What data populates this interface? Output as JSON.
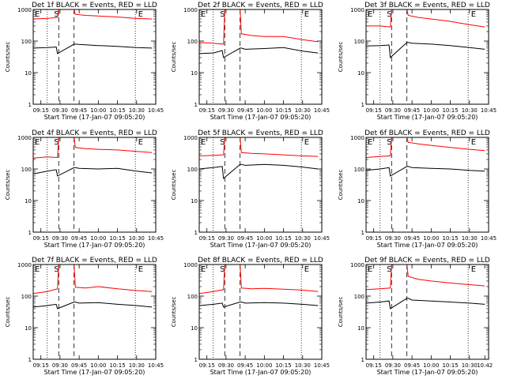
{
  "chart_data": [
    {
      "type": "line",
      "title": "Det 1f BLACK = Events, RED = LLD",
      "xlabel": "Start Time (17-Jan-07 09:05:20)",
      "ylabel": "Counts/sec",
      "yscale": "log",
      "ylim": [
        1,
        1000
      ],
      "xlim": [
        "09:09",
        "10:45"
      ],
      "x_ticks": [
        "09:15",
        "09:30",
        "09:45",
        "10:00",
        "10:15",
        "10:30",
        "10:45"
      ],
      "y_ticks": [
        "1",
        "10",
        "100",
        "1000"
      ],
      "markers": [
        "E",
        "S",
        "E"
      ],
      "series": [
        {
          "color": "#ff0000",
          "x": [
            "09:09",
            "09:20",
            "09:28",
            "09:29",
            "09:41",
            "09:42",
            "09:50",
            "10:00",
            "10:15",
            "10:30",
            "10:42"
          ],
          "values": [
            500,
            520,
            560,
            1000,
            1000,
            700,
            650,
            620,
            580,
            520,
            500
          ]
        },
        {
          "color": "#000000",
          "x": [
            "09:09",
            "09:20",
            "09:27",
            "09:28",
            "09:41",
            "09:42",
            "09:45",
            "10:00",
            "10:15",
            "10:30",
            "10:42"
          ],
          "values": [
            60,
            62,
            65,
            40,
            80,
            80,
            78,
            72,
            68,
            62,
            60
          ]
        }
      ]
    },
    {
      "type": "line",
      "title": "Det 2f BLACK = Events, RED = LLD",
      "xlabel": "Start Time (17-Jan-07 09:05:20)",
      "ylabel": "Counts/sec",
      "yscale": "log",
      "ylim": [
        1,
        1000
      ],
      "xlim": [
        "09:09",
        "10:45"
      ],
      "x_ticks": [
        "09:15",
        "09:30",
        "09:45",
        "10:00",
        "10:15",
        "10:30",
        "10:45"
      ],
      "y_ticks": [
        "1",
        "10",
        "100",
        "1000"
      ],
      "markers": [
        "E",
        "S",
        "E"
      ],
      "series": [
        {
          "color": "#ff0000",
          "x": [
            "09:09",
            "09:20",
            "09:28",
            "09:29",
            "09:41",
            "09:42",
            "09:50",
            "10:00",
            "10:15",
            "10:30",
            "10:42"
          ],
          "values": [
            90,
            85,
            80,
            1000,
            1000,
            170,
            150,
            140,
            140,
            110,
            95
          ]
        },
        {
          "color": "#000000",
          "x": [
            "09:09",
            "09:20",
            "09:27",
            "09:28",
            "09:41",
            "09:42",
            "09:45",
            "10:00",
            "10:15",
            "10:30",
            "10:42"
          ],
          "values": [
            40,
            42,
            50,
            30,
            60,
            60,
            55,
            58,
            62,
            48,
            42
          ]
        }
      ]
    },
    {
      "type": "line",
      "title": "Det 3f BLACK = Events, RED = LLD",
      "xlabel": "Start Time (17-Jan-07 09:05:20)",
      "ylabel": "Counts/sec",
      "yscale": "log",
      "ylim": [
        1,
        1000
      ],
      "xlim": [
        "09:09",
        "10:45"
      ],
      "x_ticks": [
        "09:15",
        "09:30",
        "09:45",
        "10:00",
        "10:15",
        "10:30",
        "10:45"
      ],
      "y_ticks": [
        "1",
        "10",
        "100",
        "1000"
      ],
      "markers": [
        "E",
        "S",
        "E"
      ],
      "series": [
        {
          "color": "#ff0000",
          "x": [
            "09:09",
            "09:20",
            "09:28",
            "09:29",
            "09:41",
            "09:42",
            "09:50",
            "10:00",
            "10:15",
            "10:30",
            "10:42"
          ],
          "values": [
            300,
            300,
            280,
            1000,
            1000,
            650,
            560,
            500,
            420,
            330,
            280
          ]
        },
        {
          "color": "#000000",
          "x": [
            "09:09",
            "09:20",
            "09:27",
            "09:28",
            "09:41",
            "09:42",
            "09:45",
            "10:00",
            "10:15",
            "10:30",
            "10:42"
          ],
          "values": [
            70,
            72,
            75,
            30,
            90,
            90,
            85,
            80,
            72,
            62,
            55
          ]
        }
      ]
    },
    {
      "type": "line",
      "title": "Det 4f BLACK = Events, RED = LLD",
      "xlabel": "Start Time (17-Jan-07 09:05:20)",
      "ylabel": "Counts/sec",
      "yscale": "log",
      "ylim": [
        1,
        1000
      ],
      "xlim": [
        "09:09",
        "10:45"
      ],
      "x_ticks": [
        "09:15",
        "09:30",
        "09:45",
        "10:00",
        "10:15",
        "10:30",
        "10:45"
      ],
      "y_ticks": [
        "1",
        "10",
        "100",
        "1000"
      ],
      "markers": [
        "E",
        "S",
        "E"
      ],
      "series": [
        {
          "color": "#ff0000",
          "x": [
            "09:09",
            "09:20",
            "09:28",
            "09:29",
            "09:41",
            "09:42",
            "09:50",
            "10:00",
            "10:15",
            "10:30",
            "10:42"
          ],
          "values": [
            220,
            240,
            230,
            1000,
            1000,
            480,
            440,
            420,
            400,
            360,
            330
          ]
        },
        {
          "color": "#000000",
          "x": [
            "09:09",
            "09:20",
            "09:27",
            "09:28",
            "09:41",
            "09:42",
            "09:45",
            "10:00",
            "10:15",
            "10:30",
            "10:42"
          ],
          "values": [
            70,
            85,
            95,
            60,
            110,
            110,
            105,
            100,
            105,
            85,
            75
          ]
        }
      ]
    },
    {
      "type": "line",
      "title": "Det 5f BLACK = Events, RED = LLD",
      "xlabel": "Start Time (17-Jan-07 09:05:20)",
      "ylabel": "Counts/sec",
      "yscale": "log",
      "ylim": [
        1,
        1000
      ],
      "xlim": [
        "09:09",
        "10:45"
      ],
      "x_ticks": [
        "09:15",
        "09:30",
        "09:45",
        "10:00",
        "10:15",
        "10:30",
        "10:45"
      ],
      "y_ticks": [
        "1",
        "10",
        "100",
        "1000"
      ],
      "markers": [
        "E",
        "S",
        "E"
      ],
      "series": [
        {
          "color": "#ff0000",
          "x": [
            "09:09",
            "09:20",
            "09:28",
            "09:29",
            "09:41",
            "09:42",
            "09:50",
            "10:00",
            "10:15",
            "10:30",
            "10:42"
          ],
          "values": [
            260,
            270,
            280,
            1000,
            1000,
            330,
            310,
            300,
            280,
            260,
            250
          ]
        },
        {
          "color": "#000000",
          "x": [
            "09:09",
            "09:20",
            "09:27",
            "09:28",
            "09:41",
            "09:42",
            "09:45",
            "10:00",
            "10:15",
            "10:30",
            "10:42"
          ],
          "values": [
            100,
            110,
            120,
            50,
            140,
            140,
            130,
            140,
            130,
            115,
            100
          ]
        }
      ]
    },
    {
      "type": "line",
      "title": "Det 6f BLACK = Events, RED = LLD",
      "xlabel": "Start Time (17-Jan-07 09:05:20)",
      "ylabel": "Counts/sec",
      "yscale": "log",
      "ylim": [
        1,
        1000
      ],
      "xlim": [
        "09:09",
        "10:45"
      ],
      "x_ticks": [
        "09:15",
        "09:30",
        "09:45",
        "10:00",
        "10:15",
        "10:30",
        "10:45"
      ],
      "y_ticks": [
        "1",
        "10",
        "100",
        "1000"
      ],
      "markers": [
        "E",
        "S",
        "E"
      ],
      "series": [
        {
          "color": "#ff0000",
          "x": [
            "09:09",
            "09:20",
            "09:28",
            "09:29",
            "09:41",
            "09:42",
            "09:50",
            "10:00",
            "10:15",
            "10:30",
            "10:42"
          ],
          "values": [
            230,
            250,
            260,
            1000,
            1000,
            700,
            620,
            560,
            480,
            420,
            380
          ]
        },
        {
          "color": "#000000",
          "x": [
            "09:09",
            "09:20",
            "09:27",
            "09:28",
            "09:41",
            "09:42",
            "09:45",
            "10:00",
            "10:15",
            "10:30",
            "10:42"
          ],
          "values": [
            90,
            100,
            110,
            60,
            120,
            120,
            110,
            105,
            100,
            90,
            85
          ]
        }
      ]
    },
    {
      "type": "line",
      "title": "Det 7f BLACK = Events, RED = LLD",
      "xlabel": "Start Time (17-Jan-07 09:05:20)",
      "ylabel": "Counts/sec",
      "yscale": "log",
      "ylim": [
        1,
        1000
      ],
      "xlim": [
        "09:09",
        "10:45"
      ],
      "x_ticks": [
        "09:15",
        "09:30",
        "09:45",
        "10:00",
        "10:15",
        "10:30",
        "10:45"
      ],
      "y_ticks": [
        "1",
        "10",
        "100",
        "1000"
      ],
      "markers": [
        "E",
        "S",
        "E"
      ],
      "series": [
        {
          "color": "#ff0000",
          "x": [
            "09:09",
            "09:20",
            "09:28",
            "09:29",
            "09:41",
            "09:42",
            "09:50",
            "10:00",
            "10:15",
            "10:30",
            "10:42"
          ],
          "values": [
            120,
            140,
            170,
            1000,
            1000,
            190,
            180,
            200,
            170,
            150,
            140
          ]
        },
        {
          "color": "#000000",
          "x": [
            "09:09",
            "09:20",
            "09:27",
            "09:28",
            "09:41",
            "09:42",
            "09:45",
            "10:00",
            "10:15",
            "10:30",
            "10:42"
          ],
          "values": [
            45,
            50,
            55,
            40,
            65,
            65,
            60,
            62,
            55,
            50,
            45
          ]
        }
      ]
    },
    {
      "type": "line",
      "title": "Det 8f BLACK = Events, RED = LLD",
      "xlabel": "Start Time (17-Jan-07 09:05:20)",
      "ylabel": "Counts/sec",
      "yscale": "log",
      "ylim": [
        1,
        1000
      ],
      "xlim": [
        "09:09",
        "10:45"
      ],
      "x_ticks": [
        "09:15",
        "09:30",
        "09:45",
        "10:00",
        "10:15",
        "10:30",
        "10:45"
      ],
      "y_ticks": [
        "1",
        "10",
        "100",
        "1000"
      ],
      "markers": [
        "E",
        "S",
        "E"
      ],
      "series": [
        {
          "color": "#ff0000",
          "x": [
            "09:09",
            "09:20",
            "09:28",
            "09:29",
            "09:41",
            "09:42",
            "09:50",
            "10:00",
            "10:15",
            "10:30",
            "10:42"
          ],
          "values": [
            120,
            140,
            160,
            1000,
            1000,
            180,
            170,
            175,
            165,
            155,
            140
          ]
        },
        {
          "color": "#000000",
          "x": [
            "09:09",
            "09:20",
            "09:27",
            "09:28",
            "09:41",
            "09:42",
            "09:45",
            "10:00",
            "10:15",
            "10:30",
            "10:42"
          ],
          "values": [
            50,
            55,
            60,
            45,
            65,
            65,
            60,
            62,
            60,
            55,
            50
          ]
        }
      ]
    },
    {
      "type": "line",
      "title": "Det 9f BLACK = Events, RED = LLD",
      "xlabel": "Start Time (17-Jan-07 09:05:20)",
      "ylabel": "Counts/sec",
      "yscale": "log",
      "ylim": [
        1,
        1000
      ],
      "xlim": [
        "09:09",
        "10:45"
      ],
      "x_ticks": [
        "09:15",
        "09:30",
        "09:45",
        "10:00",
        "10:15",
        "10:30",
        "10:42"
      ],
      "y_ticks": [
        "1",
        "10",
        "100",
        "1000"
      ],
      "markers": [
        "E",
        "S",
        "E"
      ],
      "series": [
        {
          "color": "#ff0000",
          "x": [
            "09:09",
            "09:20",
            "09:28",
            "09:29",
            "09:41",
            "09:42",
            "09:50",
            "10:00",
            "10:15",
            "10:30",
            "10:42"
          ],
          "values": [
            160,
            170,
            180,
            1000,
            1000,
            420,
            340,
            300,
            260,
            230,
            210
          ]
        },
        {
          "color": "#000000",
          "x": [
            "09:09",
            "09:20",
            "09:27",
            "09:28",
            "09:41",
            "09:42",
            "09:45",
            "10:00",
            "10:15",
            "10:30",
            "10:42"
          ],
          "values": [
            60,
            65,
            70,
            40,
            85,
            85,
            75,
            70,
            65,
            60,
            55
          ]
        }
      ]
    }
  ]
}
